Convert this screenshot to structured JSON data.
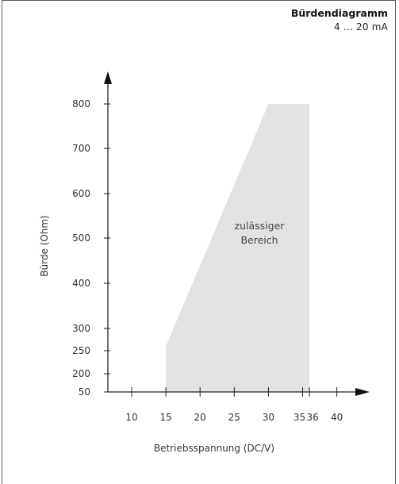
{
  "chart_data": {
    "type": "area",
    "title": "Bürdendiagramm",
    "subtitle": "4 … 20 mA",
    "xlabel": "Betriebsspannung (DC/V)",
    "ylabel": "Bürde (Ohm)",
    "x_ticks": [
      10,
      15,
      20,
      25,
      30,
      35,
      36,
      40
    ],
    "x_tick_labels": [
      "10",
      "15",
      "20",
      "25",
      "30",
      "35",
      "36",
      "40"
    ],
    "y_ticks": [
      50,
      200,
      250,
      300,
      400,
      500,
      600,
      700,
      800
    ],
    "y_tick_labels": [
      "50",
      "200",
      "250",
      "300",
      "400",
      "500",
      "600",
      "700",
      "800"
    ],
    "region": {
      "label_lines": [
        "zulässiger",
        "Bereich"
      ],
      "color": "#e2e2e2",
      "polygon": [
        {
          "x": 15,
          "y": 50
        },
        {
          "x": 15,
          "y": 260
        },
        {
          "x": 30,
          "y": 800
        },
        {
          "x": 36,
          "y": 800
        },
        {
          "x": 36,
          "y": 50
        }
      ]
    },
    "grid": false
  }
}
